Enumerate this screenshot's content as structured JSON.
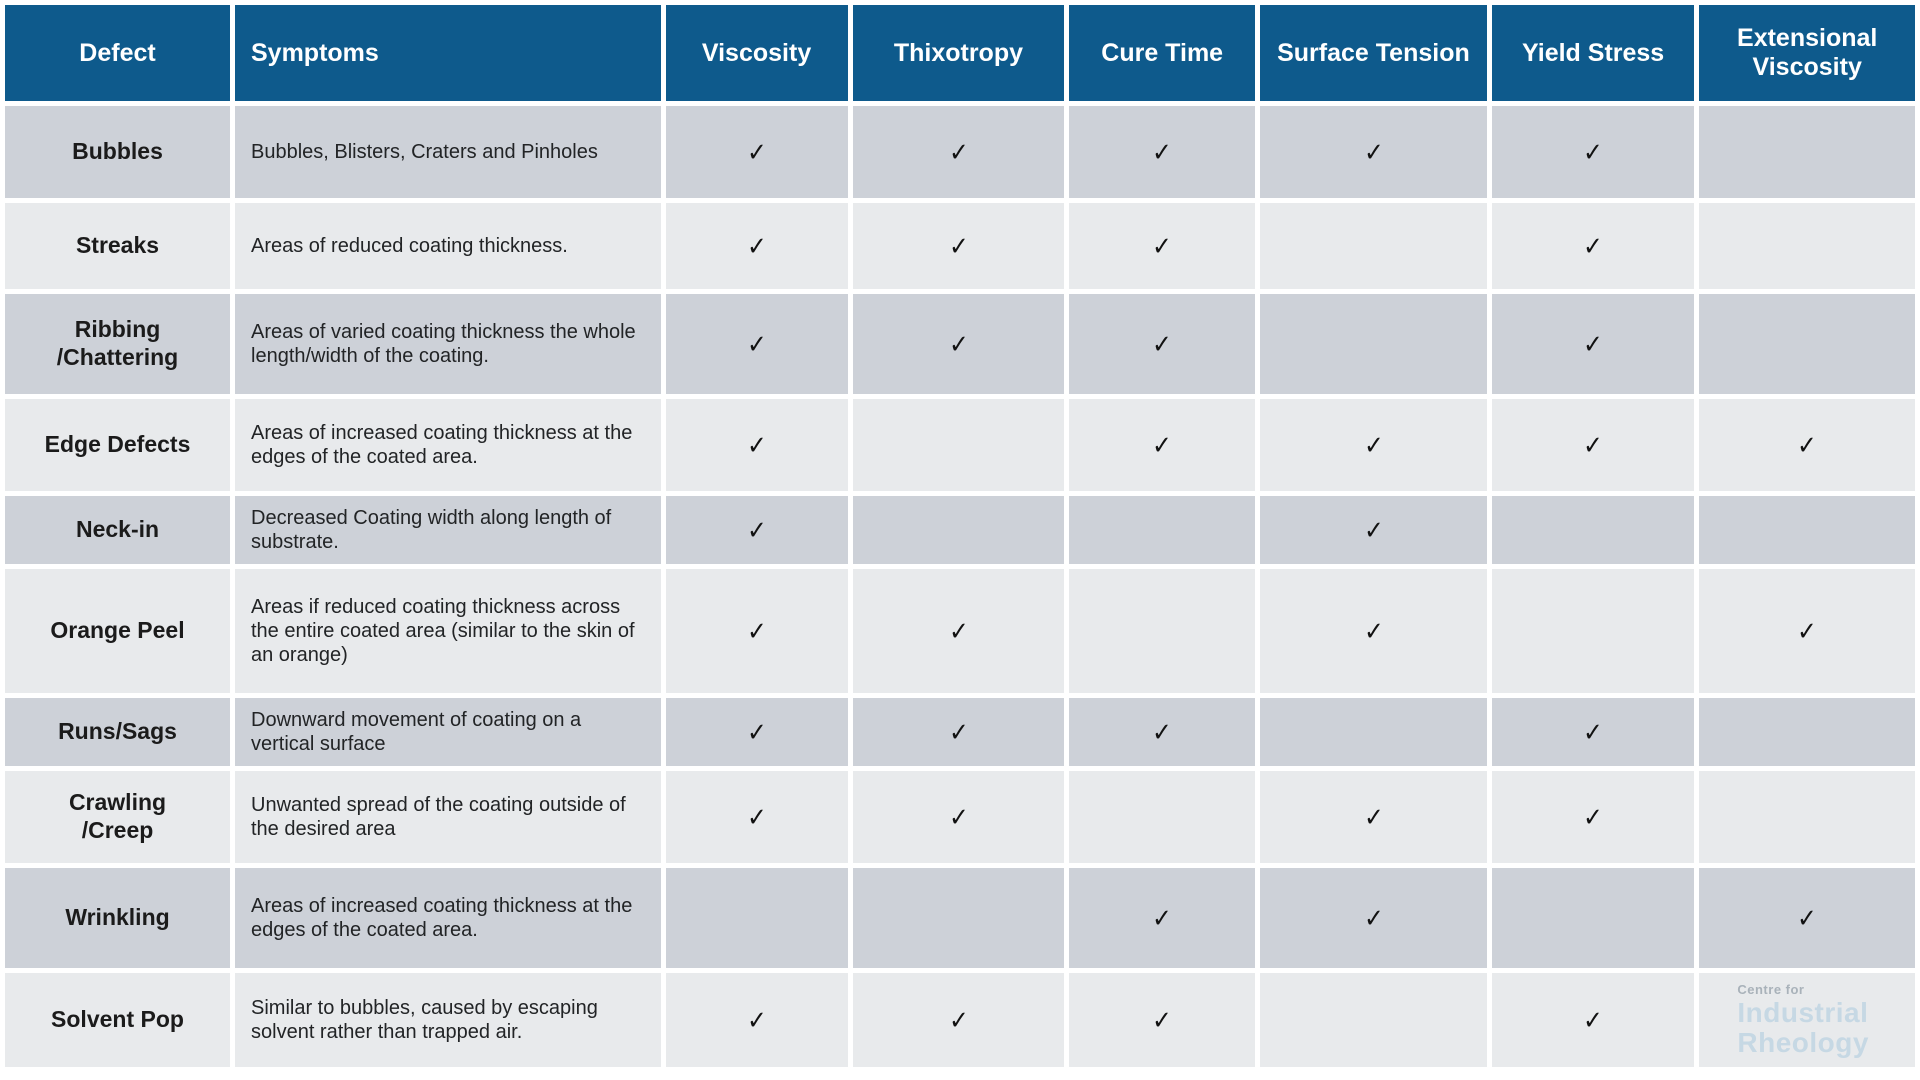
{
  "colors": {
    "header_bg": "#0E5A8C",
    "header_text": "#FFFFFF",
    "row_dark": "#CDD1D8",
    "row_light": "#E8EAEC",
    "check": "#121212",
    "logo_gray": "#A9B2BA",
    "logo_blue": "#C6D8E4"
  },
  "table": {
    "check_glyph": "✓",
    "columns": [
      {
        "key": "defect",
        "label": "Defect"
      },
      {
        "key": "symptoms",
        "label": "Symptoms"
      },
      {
        "key": "viscosity",
        "label": "Viscosity"
      },
      {
        "key": "thixotropy",
        "label": "Thixotropy"
      },
      {
        "key": "cure-time",
        "label": "Cure Time"
      },
      {
        "key": "surface-tension",
        "label": "Surface Tension"
      },
      {
        "key": "yield-stress",
        "label": "Yield Stress"
      },
      {
        "key": "extensional-viscosity",
        "label": "Extensional Viscosity"
      }
    ],
    "rows": [
      {
        "defect": "Bubbles",
        "symptoms": "Bubbles, Blisters, Craters and Pinholes",
        "checks": [
          true,
          true,
          true,
          true,
          true,
          false
        ]
      },
      {
        "defect": "Streaks",
        "symptoms": "Areas of reduced coating thickness.",
        "checks": [
          true,
          true,
          true,
          false,
          true,
          false
        ]
      },
      {
        "defect": "Ribbing\n/Chattering",
        "symptoms": "Areas of varied coating thickness the whole length/width of the coating.",
        "checks": [
          true,
          true,
          true,
          false,
          true,
          false
        ]
      },
      {
        "defect": "Edge Defects",
        "symptoms": "Areas of increased coating thickness at the edges of the coated area.",
        "checks": [
          true,
          false,
          true,
          true,
          true,
          true
        ]
      },
      {
        "defect": "Neck-in",
        "symptoms": "Decreased Coating width along length of substrate.",
        "checks": [
          true,
          false,
          false,
          true,
          false,
          false
        ]
      },
      {
        "defect": "Orange Peel",
        "symptoms": "Areas if reduced coating thickness across the entire coated area (similar to the skin of an orange)",
        "checks": [
          true,
          true,
          false,
          true,
          false,
          true
        ]
      },
      {
        "defect": "Runs/Sags",
        "symptoms": "Downward movement of coating on a vertical surface",
        "checks": [
          true,
          true,
          true,
          false,
          true,
          false
        ]
      },
      {
        "defect": "Crawling\n/Creep",
        "symptoms": "Unwanted spread of the coating outside of the desired area",
        "checks": [
          true,
          true,
          false,
          true,
          true,
          false
        ]
      },
      {
        "defect": "Wrinkling",
        "symptoms": "Areas of increased coating thickness at the edges of the coated area.",
        "checks": [
          false,
          false,
          true,
          true,
          false,
          true
        ]
      },
      {
        "defect": "Solvent Pop",
        "symptoms": "Similar to bubbles, caused by escaping solvent rather than trapped air.",
        "checks": [
          true,
          true,
          true,
          false,
          true,
          false
        ]
      }
    ]
  },
  "logo": {
    "line1": "Centre for",
    "line2": "Industrial",
    "line3": "Rheology"
  }
}
